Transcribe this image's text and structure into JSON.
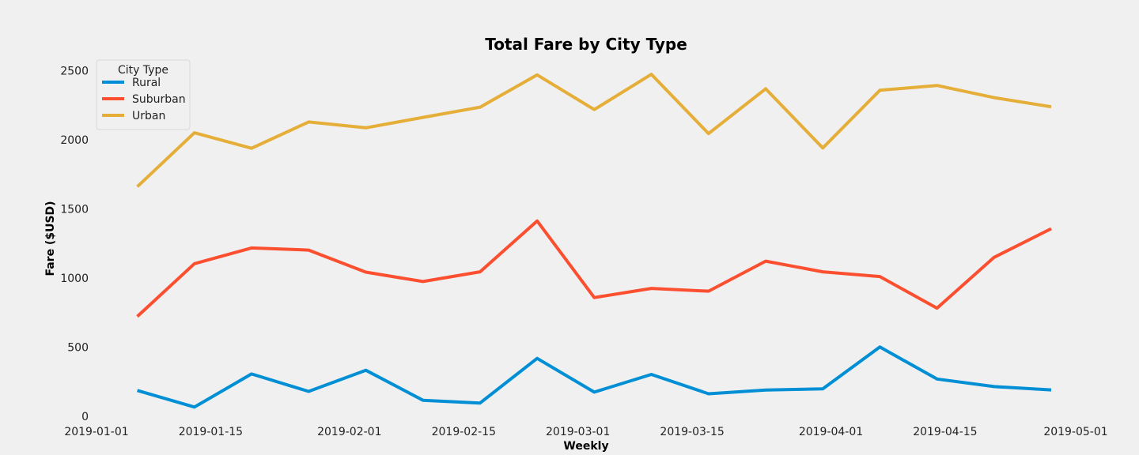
{
  "chart_data": {
    "type": "line",
    "title": "Total Fare by City Type",
    "xlabel": "Weekly",
    "ylabel": "Fare ($USD)",
    "ylim": [
      0,
      2600
    ],
    "xlim": [
      "2019-01-01",
      "2019-05-01"
    ],
    "yticks": [
      0,
      500,
      1000,
      1500,
      2000,
      2500
    ],
    "xticks": [
      "2019-01-01",
      "2019-01-15",
      "2019-02-01",
      "2019-02-15",
      "2019-03-01",
      "2019-03-15",
      "2019-04-01",
      "2019-04-15",
      "2019-05-01"
    ],
    "grid": false,
    "legend": {
      "title": "City Type",
      "placement": "top-left"
    },
    "x": [
      "2019-01-06",
      "2019-01-13",
      "2019-01-20",
      "2019-01-27",
      "2019-02-03",
      "2019-02-10",
      "2019-02-17",
      "2019-02-24",
      "2019-03-03",
      "2019-03-10",
      "2019-03-17",
      "2019-03-24",
      "2019-03-31",
      "2019-04-07",
      "2019-04-14",
      "2019-04-21",
      "2019-04-28"
    ],
    "series": [
      {
        "name": "Rural",
        "color": "#008fd5",
        "values": [
          187,
          67,
          306,
          180,
          333,
          116,
          96,
          419,
          175,
          303,
          163,
          190,
          199,
          501,
          270,
          215,
          191
        ]
      },
      {
        "name": "Suburban",
        "color": "#fc4f30",
        "values": [
          722,
          1104,
          1218,
          1202,
          1043,
          975,
          1045,
          1413,
          859,
          925,
          905,
          1122,
          1045,
          1011,
          782,
          1150,
          1357
        ]
      },
      {
        "name": "Urban",
        "color": "#e5ae38",
        "values": [
          1661,
          2051,
          1939,
          2129,
          2087,
          2162,
          2236,
          2470,
          2219,
          2474,
          2045,
          2369,
          1941,
          2358,
          2393,
          2305,
          2239
        ]
      }
    ]
  }
}
